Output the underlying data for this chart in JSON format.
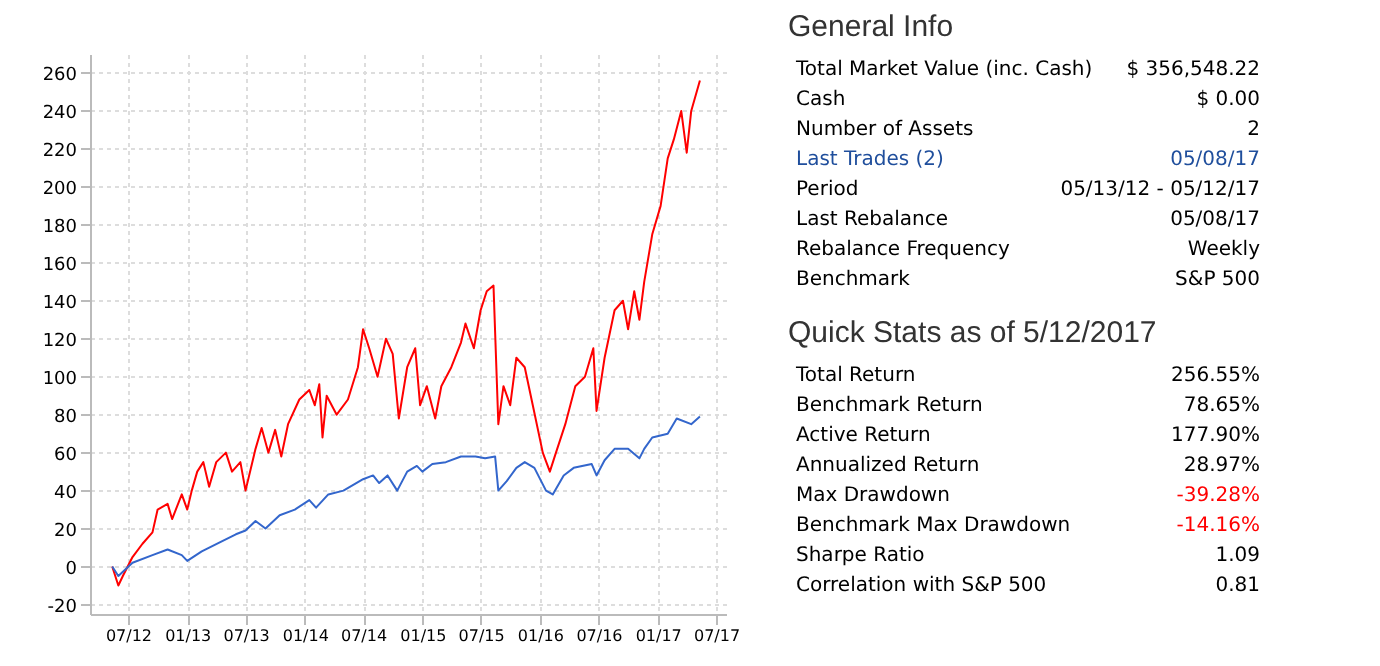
{
  "chart_data": [
    {
      "type": "line",
      "grid": true,
      "marker": "none",
      "line_style": "solid",
      "xlim": [
        "2012-03-05",
        "2017-08-01"
      ],
      "xticks": [
        {
          "value": "2012-07-01",
          "label": "07/12"
        },
        {
          "value": "2013-01-01",
          "label": "01/13"
        },
        {
          "value": "2013-07-01",
          "label": "07/13"
        },
        {
          "value": "2014-01-01",
          "label": "01/14"
        },
        {
          "value": "2014-07-01",
          "label": "07/14"
        },
        {
          "value": "2015-01-01",
          "label": "01/15"
        },
        {
          "value": "2015-07-01",
          "label": "07/15"
        },
        {
          "value": "2016-01-01",
          "label": "01/16"
        },
        {
          "value": "2016-07-01",
          "label": "07/16"
        },
        {
          "value": "2017-01-01",
          "label": "01/17"
        },
        {
          "value": "2017-07-01",
          "label": "07/17"
        }
      ],
      "ylim": [
        -25,
        270
      ],
      "yticks": [
        -20,
        0,
        20,
        40,
        60,
        80,
        100,
        120,
        140,
        160,
        180,
        200,
        220,
        240,
        260
      ],
      "series": [
        {
          "color": "#ff0000",
          "x": [
            "2012-05-13",
            "2012-06-01",
            "2012-06-15",
            "2012-07-15",
            "2012-08-15",
            "2012-09-15",
            "2012-10-01",
            "2012-11-01",
            "2012-11-15",
            "2012-12-15",
            "2013-01-01",
            "2013-01-15",
            "2013-02-01",
            "2013-02-20",
            "2013-03-10",
            "2013-04-01",
            "2013-05-01",
            "2013-05-20",
            "2013-06-15",
            "2013-07-01",
            "2013-08-01",
            "2013-08-20",
            "2013-09-10",
            "2013-10-01",
            "2013-10-20",
            "2013-11-10",
            "2013-12-15",
            "2014-01-15",
            "2014-02-01",
            "2014-02-15",
            "2014-02-25",
            "2014-03-10",
            "2014-04-10",
            "2014-05-15",
            "2014-06-15",
            "2014-07-01",
            "2014-07-20",
            "2014-08-15",
            "2014-09-10",
            "2014-10-01",
            "2014-10-20",
            "2014-11-15",
            "2014-12-10",
            "2014-12-25",
            "2015-01-15",
            "2015-02-10",
            "2015-03-01",
            "2015-04-01",
            "2015-05-01",
            "2015-05-15",
            "2015-06-10",
            "2015-07-01",
            "2015-07-20",
            "2015-08-10",
            "2015-08-25",
            "2015-09-10",
            "2015-10-01",
            "2015-10-20",
            "2015-11-15",
            "2015-12-10",
            "2016-01-10",
            "2016-02-01",
            "2016-02-20",
            "2016-03-20",
            "2016-04-20",
            "2016-05-20",
            "2016-06-15",
            "2016-06-25",
            "2016-07-20",
            "2016-08-20",
            "2016-09-15",
            "2016-10-01",
            "2016-10-20",
            "2016-11-05",
            "2016-11-20",
            "2016-12-15",
            "2017-01-10",
            "2017-02-01",
            "2017-02-20",
            "2017-03-15",
            "2017-04-01",
            "2017-04-15",
            "2017-05-12"
          ],
          "values": [
            0,
            -10,
            -5,
            5,
            12,
            18,
            30,
            33,
            25,
            38,
            30,
            40,
            50,
            55,
            42,
            55,
            60,
            50,
            55,
            40,
            62,
            73,
            60,
            72,
            58,
            75,
            88,
            93,
            85,
            96,
            68,
            90,
            80,
            88,
            105,
            125,
            115,
            100,
            120,
            112,
            78,
            105,
            115,
            85,
            95,
            78,
            95,
            105,
            118,
            128,
            115,
            135,
            145,
            148,
            75,
            95,
            85,
            110,
            105,
            85,
            60,
            50,
            60,
            75,
            95,
            100,
            115,
            82,
            110,
            135,
            140,
            125,
            145,
            130,
            150,
            175,
            190,
            215,
            225,
            240,
            218,
            240,
            256
          ]
        },
        {
          "color": "#3366cc",
          "x": [
            "2012-05-13",
            "2012-06-01",
            "2012-07-15",
            "2012-09-15",
            "2012-11-01",
            "2012-12-15",
            "2013-01-01",
            "2013-02-15",
            "2013-04-15",
            "2013-06-01",
            "2013-07-01",
            "2013-08-01",
            "2013-09-01",
            "2013-10-15",
            "2013-12-01",
            "2014-01-15",
            "2014-02-05",
            "2014-03-15",
            "2014-05-01",
            "2014-07-01",
            "2014-08-01",
            "2014-08-20",
            "2014-09-15",
            "2014-10-15",
            "2014-11-15",
            "2014-12-15",
            "2015-01-01",
            "2015-02-01",
            "2015-03-15",
            "2015-05-01",
            "2015-06-15",
            "2015-07-15",
            "2015-08-15",
            "2015-08-25",
            "2015-09-20",
            "2015-10-20",
            "2015-11-15",
            "2015-12-15",
            "2016-01-20",
            "2016-02-10",
            "2016-03-15",
            "2016-04-15",
            "2016-06-10",
            "2016-06-25",
            "2016-07-20",
            "2016-08-20",
            "2016-10-01",
            "2016-11-05",
            "2016-11-20",
            "2016-12-15",
            "2017-02-01",
            "2017-03-01",
            "2017-04-15",
            "2017-05-12"
          ],
          "values": [
            0,
            -5,
            2,
            6,
            9,
            6,
            3,
            8,
            13,
            17,
            19,
            24,
            20,
            27,
            30,
            35,
            31,
            38,
            40,
            46,
            48,
            44,
            48,
            40,
            50,
            53,
            50,
            54,
            55,
            58,
            58,
            57,
            58,
            40,
            45,
            52,
            55,
            52,
            40,
            38,
            48,
            52,
            54,
            48,
            56,
            62,
            62,
            57,
            62,
            68,
            70,
            78,
            75,
            79
          ]
        }
      ]
    },
    {
      "type": "other",
      "title": "General Info",
      "annotations": [
        "Total Market Value (inc. Cash)",
        "$ 356,548.22",
        "Cash",
        "$ 0.00",
        "Number of Assets",
        "2",
        "Last Trades (2)",
        "05/08/17",
        "Period",
        "05/13/12 - 05/12/17",
        "Last Rebalance",
        "05/08/17",
        "Rebalance Frequency",
        "Weekly",
        "Benchmark",
        "S&P 500"
      ],
      "colors": [
        "#000000",
        "#000000",
        "#000000",
        "#000000",
        "#000000",
        "#000000",
        "#1f4e9c",
        "#1f4e9c",
        "#000000",
        "#000000",
        "#000000",
        "#000000",
        "#000000",
        "#000000",
        "#000000",
        "#000000"
      ]
    },
    {
      "type": "other",
      "title": "Quick Stats as of 5/12/2017",
      "annotations": [
        "Total Return",
        "256.55%",
        "Benchmark Return",
        "78.65%",
        "Active Return",
        "177.90%",
        "Annualized Return",
        "28.97%",
        "Max Drawdown",
        "-39.28%",
        "Benchmark Max Drawdown",
        "-14.16%",
        "Sharpe Ratio",
        "1.09",
        "Correlation with S&P 500",
        "0.81"
      ],
      "colors": [
        "#000000",
        "#000000",
        "#000000",
        "#000000",
        "#000000",
        "#000000",
        "#000000",
        "#000000",
        "#000000",
        "#ff0000",
        "#000000",
        "#ff0000",
        "#000000",
        "#000000",
        "#000000",
        "#000000"
      ]
    }
  ]
}
